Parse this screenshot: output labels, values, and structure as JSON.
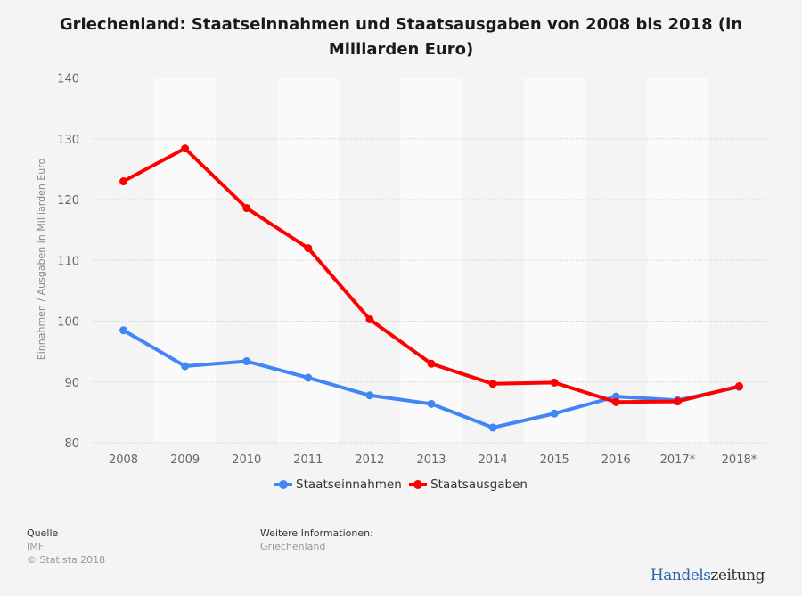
{
  "title": "Griechenland: Staatseinnahmen und Staatsausgaben von 2008 bis 2018 (in Milliarden Euro)",
  "chart_data": {
    "type": "line",
    "title": "Griechenland: Staatseinnahmen und Staatsausgaben von 2008 bis 2018 (in Milliarden Euro)",
    "xlabel": "",
    "ylabel": "Einnahmen / Ausgaben in Milliarden Euro",
    "categories": [
      "2008",
      "2009",
      "2010",
      "2011",
      "2012",
      "2013",
      "2014",
      "2015",
      "2016",
      "2017*",
      "2018*"
    ],
    "ylim": [
      80,
      140
    ],
    "yticks": [
      80,
      90,
      100,
      110,
      120,
      130,
      140
    ],
    "grid": true,
    "legend_position": "bottom",
    "series": [
      {
        "name": "Staatseinnahmen",
        "color": "#4285f4",
        "values": [
          98.5,
          92.6,
          93.4,
          90.7,
          87.8,
          86.4,
          82.5,
          84.8,
          87.6,
          87.0,
          89.2
        ]
      },
      {
        "name": "Staatsausgaben",
        "color": "#ff0000",
        "values": [
          123.0,
          128.4,
          118.6,
          112.0,
          100.3,
          93.0,
          89.7,
          89.9,
          86.7,
          86.8,
          89.3
        ]
      }
    ]
  },
  "footer": {
    "source_heading": "Quelle",
    "source": "IMF",
    "copyright": "© Statista 2018",
    "info_heading": "Weitere Informationen:",
    "info": "Griechenland"
  },
  "brand": {
    "part1": "Handels",
    "part2": "zeitung"
  }
}
